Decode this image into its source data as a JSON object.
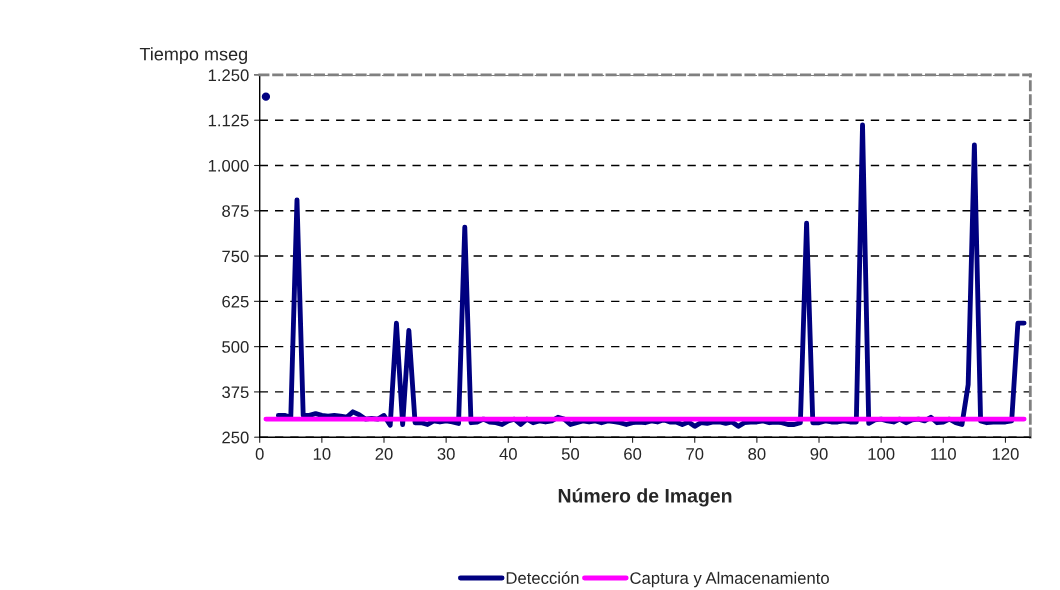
{
  "chart_data": {
    "type": "line",
    "xlabel": "Número de Imagen",
    "ylabel": "Tiempo mseg",
    "x": [
      1,
      2,
      3,
      4,
      5,
      6,
      7,
      8,
      9,
      10,
      11,
      12,
      13,
      14,
      15,
      16,
      17,
      18,
      19,
      20,
      21,
      22,
      23,
      24,
      25,
      26,
      27,
      28,
      29,
      30,
      31,
      32,
      33,
      34,
      35,
      36,
      37,
      38,
      39,
      40,
      41,
      42,
      43,
      44,
      45,
      46,
      47,
      48,
      49,
      50,
      51,
      52,
      53,
      54,
      55,
      56,
      57,
      58,
      59,
      60,
      61,
      62,
      63,
      64,
      65,
      66,
      67,
      68,
      69,
      70,
      71,
      72,
      73,
      74,
      75,
      76,
      77,
      78,
      79,
      80,
      81,
      82,
      83,
      84,
      85,
      86,
      87,
      88,
      89,
      90,
      91,
      92,
      93,
      94,
      95,
      96,
      97,
      98,
      99,
      100,
      101,
      102,
      103,
      104,
      105,
      106,
      107,
      108,
      109,
      110,
      111,
      112,
      113,
      114,
      115,
      116,
      117,
      118,
      119,
      120,
      121,
      122,
      123
    ],
    "series": [
      {
        "name": "Detección",
        "color": "#000080",
        "values": [
          1190,
          null,
          310,
          310,
          305,
          905,
          310,
          310,
          315,
          310,
          308,
          310,
          308,
          305,
          320,
          312,
          300,
          302,
          300,
          310,
          283,
          565,
          285,
          545,
          290,
          290,
          285,
          295,
          292,
          295,
          292,
          288,
          830,
          290,
          292,
          300,
          292,
          290,
          285,
          295,
          300,
          285,
          300,
          290,
          295,
          292,
          295,
          305,
          300,
          285,
          290,
          295,
          292,
          295,
          290,
          295,
          293,
          290,
          285,
          290,
          292,
          290,
          295,
          292,
          298,
          292,
          292,
          285,
          292,
          280,
          290,
          288,
          292,
          292,
          288,
          292,
          280,
          290,
          292,
          292,
          295,
          290,
          292,
          290,
          285,
          285,
          290,
          841,
          290,
          290,
          295,
          292,
          292,
          295,
          292,
          292,
          1112,
          288,
          298,
          300,
          295,
          292,
          300,
          290,
          298,
          300,
          295,
          305,
          290,
          292,
          300,
          290,
          285,
          395,
          1057,
          295,
          290,
          292,
          292,
          292,
          295,
          565,
          565
        ]
      },
      {
        "name": "Captura y Almacenamiento",
        "color": "#ff00ff",
        "values": [
          300,
          300,
          300,
          300,
          300,
          300,
          300,
          300,
          300,
          300,
          300,
          300,
          300,
          300,
          300,
          300,
          300,
          300,
          300,
          300,
          300,
          300,
          300,
          300,
          300,
          300,
          300,
          300,
          300,
          300,
          300,
          300,
          300,
          300,
          300,
          300,
          300,
          300,
          300,
          300,
          300,
          300,
          300,
          300,
          300,
          300,
          300,
          300,
          300,
          300,
          300,
          300,
          300,
          300,
          300,
          300,
          300,
          300,
          300,
          300,
          300,
          300,
          300,
          300,
          300,
          300,
          300,
          300,
          300,
          300,
          300,
          300,
          300,
          300,
          300,
          300,
          300,
          300,
          300,
          300,
          300,
          300,
          300,
          300,
          300,
          300,
          300,
          300,
          300,
          300,
          300,
          300,
          300,
          300,
          300,
          300,
          300,
          300,
          300,
          300,
          300,
          300,
          300,
          300,
          300,
          300,
          300,
          300,
          300,
          300,
          300,
          300,
          300,
          300,
          300,
          300,
          300,
          300,
          300,
          300,
          300,
          300,
          300
        ]
      }
    ],
    "xlim": [
      0,
      124
    ],
    "xticks": [
      0,
      10,
      20,
      30,
      40,
      50,
      60,
      70,
      80,
      90,
      100,
      110,
      120
    ],
    "ylim": [
      250,
      1250
    ],
    "yticks": [
      {
        "value": 250,
        "label": "250"
      },
      {
        "value": 375,
        "label": "375"
      },
      {
        "value": 500,
        "label": "500"
      },
      {
        "value": 625,
        "label": "625"
      },
      {
        "value": 750,
        "label": "750"
      },
      {
        "value": 875,
        "label": "875"
      },
      {
        "value": 1000,
        "label": "1.000"
      },
      {
        "value": 1125,
        "label": "1.125"
      },
      {
        "value": 1250,
        "label": "1.250"
      }
    ],
    "grid": "y",
    "legend": "bottom",
    "line_style": "solid",
    "marker": "none"
  }
}
